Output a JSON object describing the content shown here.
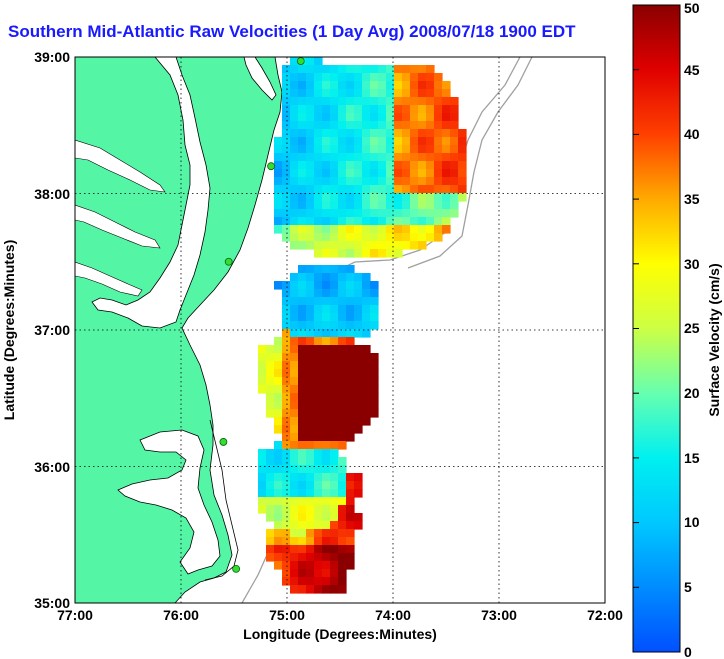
{
  "title": "Southern Mid-Atlantic Raw Velocities (1 Day Avg) 2008/07/18 1900 EDT",
  "x_axis": {
    "label": "Longitude (Degrees:Minutes)",
    "ticks": [
      "77:00",
      "76:00",
      "75:00",
      "74:00",
      "73:00",
      "72:00"
    ]
  },
  "y_axis": {
    "label": "Latitude (Degrees:Minutes)",
    "ticks": [
      "39:00",
      "38:00",
      "37:00",
      "36:00",
      "35:00"
    ]
  },
  "colorbar": {
    "label": "Surface Velocity (cm/s)",
    "min": 0,
    "max": 50,
    "ticks": [
      "0",
      "5",
      "10",
      "15",
      "20",
      "25",
      "30",
      "35",
      "40",
      "45",
      "50"
    ]
  },
  "map_extent": {
    "lon_min": -77,
    "lon_max": -72,
    "lat_min": 35,
    "lat_max": 39
  },
  "colors": {
    "land": "#55f5a6",
    "title": "#1a1aff",
    "grid": "#000000",
    "contour": "#a0a0a0",
    "station": "#33dd33"
  },
  "stations": [
    {
      "lon": -74.87,
      "lat": 38.97
    },
    {
      "lon": -75.15,
      "lat": 38.2
    },
    {
      "lon": -75.55,
      "lat": 37.5
    },
    {
      "lon": -75.6,
      "lat": 36.18
    },
    {
      "lon": -75.48,
      "lat": 35.25
    }
  ]
}
